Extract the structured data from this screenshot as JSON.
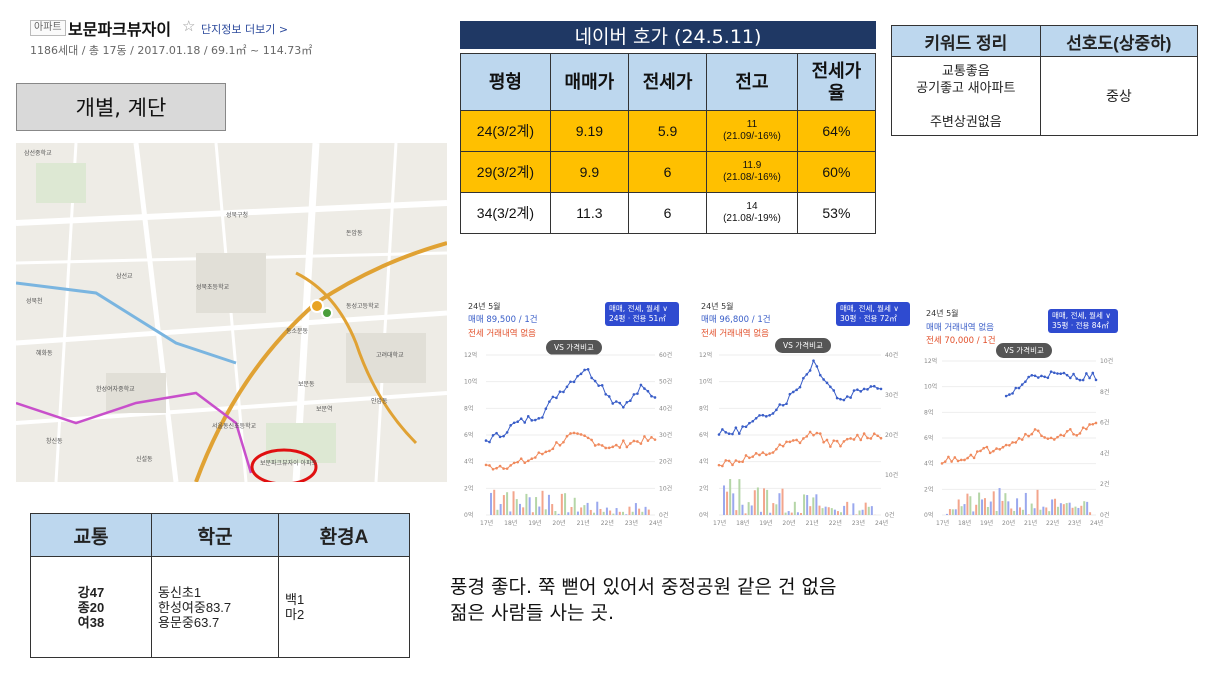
{
  "header": {
    "badge": "아파트",
    "name": "보문파크뷰자이",
    "star": "☆",
    "more_link": "단지정보 더보기 >",
    "info": "1186세대 / 총 17동 / 2017.01.18 / 69.1㎡ ~ 114.73㎡"
  },
  "section_label": "개별, 계단",
  "map": {
    "labels": [
      "삼선중학교",
      "성북구청",
      "성북초등학교",
      "삼선교",
      "동소문동",
      "보문파크뷰자이 아파트",
      "보문동",
      "신설동",
      "한성여자중학교",
      "동성고등학교",
      "고려대학교",
      "서울동신초등학교",
      "창신동",
      "안암동",
      "성북천",
      "돈암동",
      "보문역",
      "혜화동"
    ]
  },
  "naver": {
    "title": "네이버 호가 (24.5.11)",
    "headers": [
      "평형",
      "매매가",
      "전세가",
      "전고",
      "전세가\n율"
    ],
    "rows": [
      {
        "type": "24(3/2계)",
        "sale": "9.19",
        "jeonse": "5.9",
        "high": "11",
        "high_sub": "(21.09/-16%)",
        "rate": "64%"
      },
      {
        "type": "29(3/2계)",
        "sale": "9.9",
        "jeonse": "6",
        "high": "11.9",
        "high_sub": "(21.08/-16%)",
        "rate": "60%"
      },
      {
        "type": "34(3/2계)",
        "sale": "11.3",
        "jeonse": "6",
        "high": "14",
        "high_sub": "(21.08/-19%)",
        "rate": "53%"
      }
    ]
  },
  "keywords": {
    "headers": [
      "키워드 정리",
      "선호도(상중하)"
    ],
    "lines": [
      "교통좋음",
      "공기좋고 새아파트",
      "",
      "주변상권없음"
    ],
    "preference": "중상"
  },
  "charts": [
    {
      "period": "24년 5월",
      "line1": "매매 89,500 / 1건",
      "line2": "전세 거래내역 없음",
      "badge1": "매매, 전세, 월세 ∨",
      "badge2": "24평 · 전용 51㎡",
      "vs": "VS 가격비교"
    },
    {
      "period": "24년 5월",
      "line1": "매매 96,800 / 1건",
      "line2": "전세 거래내역 없음",
      "badge1": "매매, 전세, 월세 ∨",
      "badge2": "30평 · 전용 72㎡",
      "vs": "VS 가격비교"
    },
    {
      "period": "24년 5월",
      "line1": "매매 거래내역 없음",
      "line2": "전세 70,000 / 1건",
      "badge1": "매매, 전세, 월세 ∨",
      "badge2": "35평 · 전용 84㎡",
      "vs": "VS 가격비교"
    }
  ],
  "chart_axis": {
    "y_left": [
      "12억",
      "10억",
      "8억",
      "6억",
      "4억",
      "2억",
      "0억"
    ],
    "y_right_1": [
      "60건",
      "50건",
      "40건",
      "30건",
      "20건",
      "10건",
      "0건"
    ],
    "y_right_2": [
      "40건",
      "30건",
      "20건",
      "10건",
      "0건"
    ],
    "y_right_3": [
      "10건",
      "8건",
      "6건",
      "4건",
      "2건",
      "0건"
    ],
    "x": [
      "17년",
      "18년",
      "19년",
      "20년",
      "21년",
      "22년",
      "23년",
      "24년"
    ]
  },
  "school": {
    "headers": [
      "교통",
      "학군",
      "환경A"
    ],
    "transport": [
      "강47",
      "종20",
      "여38"
    ],
    "schools": [
      "동신초1",
      "한성여중83.7",
      "용문중63.7"
    ],
    "env": [
      "백1",
      "마2"
    ]
  },
  "comment": {
    "line1": "풍경 좋다. 쭉 뻗어 있어서 중정공원 같은 건 없음",
    "line2": "젊은 사람들 사는 곳."
  },
  "colors": {
    "header_blue": "#bdd7ee",
    "title_navy": "#1f3864",
    "highlight": "#ffc000",
    "sale_line": "#3a5ec8",
    "jeonse_line": "#f08a5d"
  }
}
